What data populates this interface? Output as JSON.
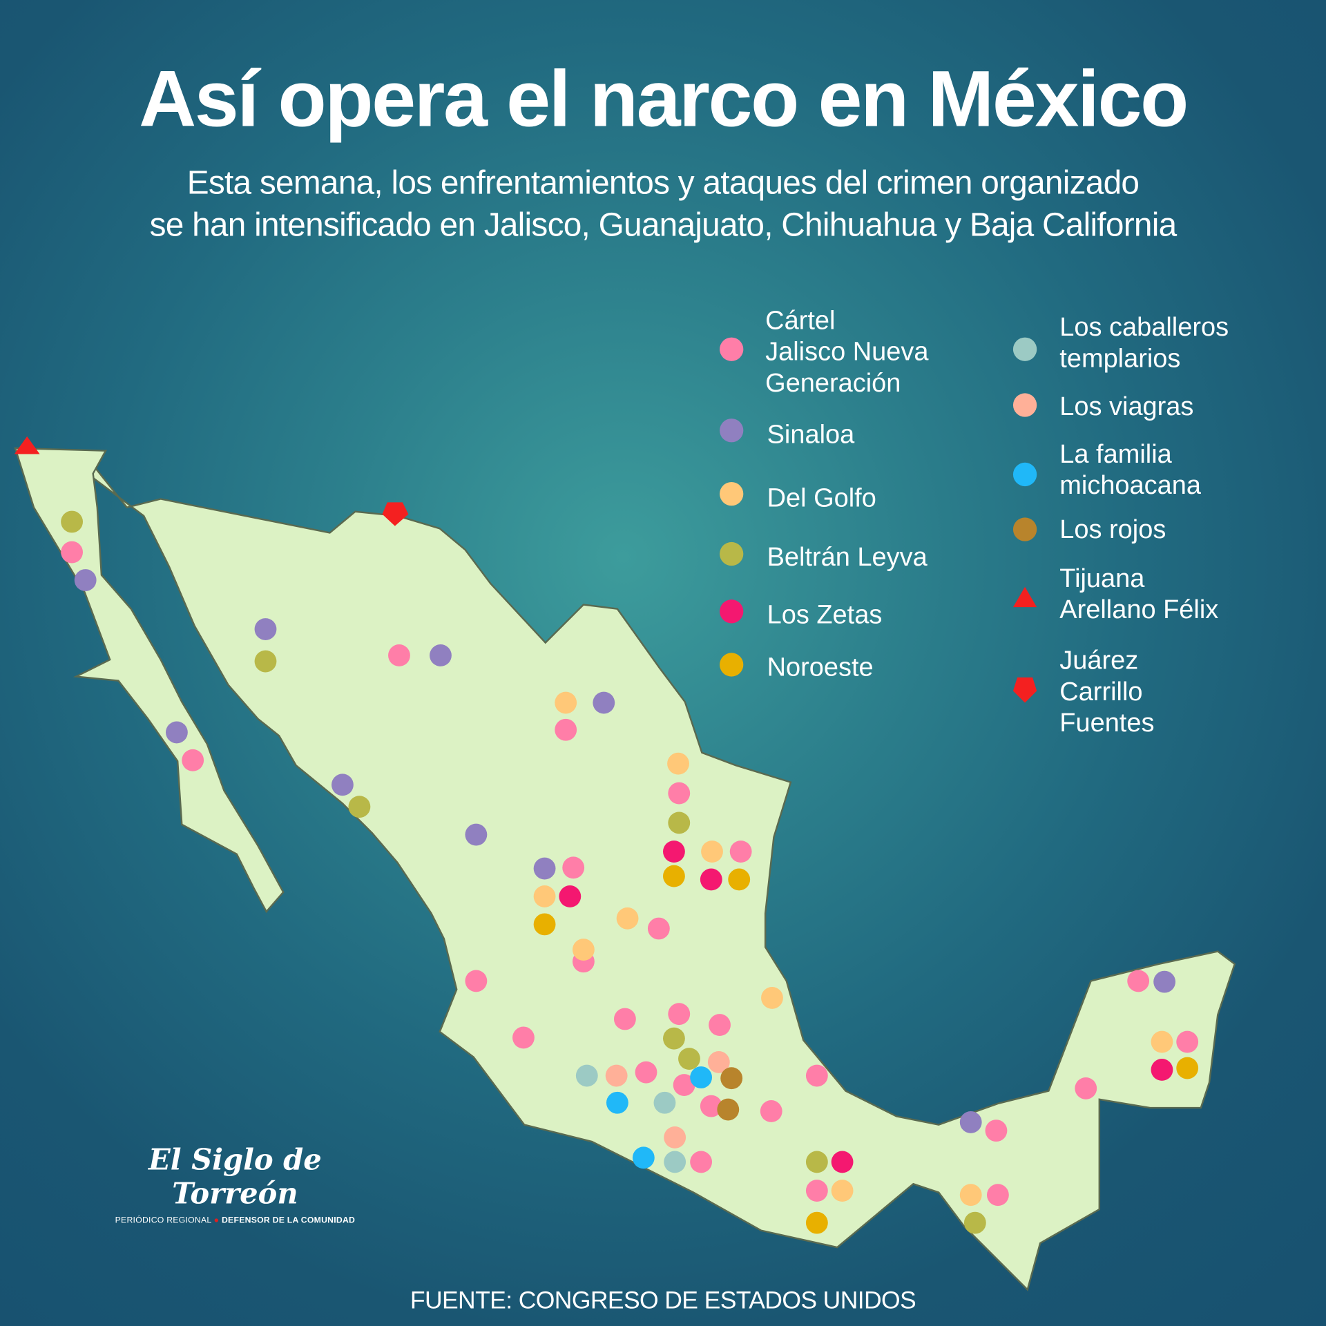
{
  "title": "Así opera el narco en México",
  "subtitle": [
    "Esta semana, los enfrentamientos y ataques del crimen organizado",
    "se han intensificado en Jalisco, Guanajuato, Chihuahua y Baja California"
  ],
  "legend": [
    {
      "key": "J",
      "label": "Cártel Jalisco Nueva Generación",
      "lines": [
        "Cártel",
        "Jalisco Nueva",
        "Generación"
      ],
      "color": "#ff7ea8",
      "shape": "circle"
    },
    {
      "key": "S",
      "label": "Sinaloa",
      "lines": [
        "Sinaloa"
      ],
      "color": "#9080c0",
      "shape": "circle"
    },
    {
      "key": "G",
      "label": "Del Golfo",
      "lines": [
        "Del Golfo"
      ],
      "color": "#ffc878",
      "shape": "circle"
    },
    {
      "key": "B",
      "label": "Beltrán Leyva",
      "lines": [
        "Beltrán Leyva"
      ],
      "color": "#b8b848",
      "shape": "circle"
    },
    {
      "key": "Z",
      "label": "Los Zetas",
      "lines": [
        "Los Zetas"
      ],
      "color": "#f41870",
      "shape": "circle"
    },
    {
      "key": "N",
      "label": "Noroeste",
      "lines": [
        "Noroeste"
      ],
      "color": "#e8b000",
      "shape": "circle"
    },
    {
      "key": "C",
      "label": "Los caballeros templarios",
      "lines": [
        "Los caballeros",
        "templarios"
      ],
      "color": "#9ccac4",
      "shape": "circle"
    },
    {
      "key": "V",
      "label": "Los viagras",
      "lines": [
        "Los viagras"
      ],
      "color": "#ffb098",
      "shape": "circle"
    },
    {
      "key": "F",
      "label": "La familia michoacana",
      "lines": [
        "La familia",
        "michoacana"
      ],
      "color": "#20b8f8",
      "shape": "circle"
    },
    {
      "key": "R",
      "label": "Los rojos",
      "lines": [
        "Los rojos"
      ],
      "color": "#b8842c",
      "shape": "circle"
    },
    {
      "key": "T",
      "label": "Tijuana Arellano Félix",
      "lines": [
        "Tijuana",
        "Arellano Félix"
      ],
      "color": "#f42020",
      "shape": "triangle"
    },
    {
      "key": "P",
      "label": "Juárez Carrillo Fuentes",
      "lines": [
        "Juárez",
        "Carrillo",
        "Fuentes"
      ],
      "color": "#f42020",
      "shape": "pentagon"
    }
  ],
  "map_colors": {
    "land": "#dcf2c4",
    "border": "#5a6a50"
  },
  "logo": {
    "name": "El Siglo de Torreón",
    "tag_left": "PERIÓDICO REGIONAL",
    "tag_right": "DEFENSOR DE LA COMUNIDAD"
  },
  "source": "FUENTE: CONGRESO DE ESTADOS UNIDOS"
}
